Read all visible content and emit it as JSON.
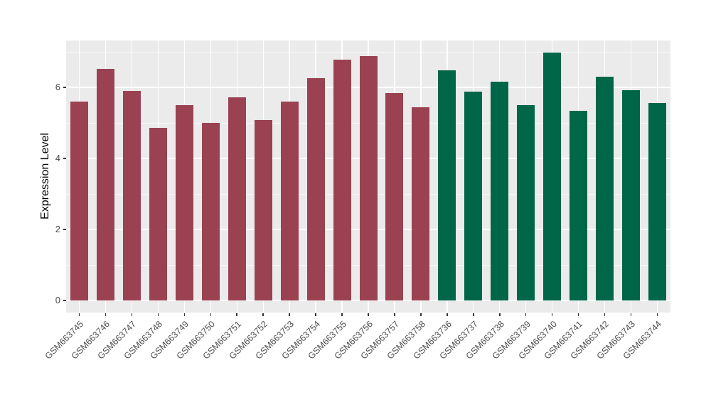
{
  "figure": {
    "background": "#FFFFFF",
    "panel_background": "#EBEBEB",
    "gridline_color": "#FFFFFF"
  },
  "chart_data": {
    "type": "bar",
    "title": "",
    "xlabel": "",
    "ylabel": "Expression Level",
    "ylim": [
      0,
      7.32
    ],
    "yticks": [
      0,
      2,
      4,
      6
    ],
    "yticks_minor": [
      1,
      3,
      5,
      7
    ],
    "grid": true,
    "legend_position": "none",
    "categories": [
      "GSM663745",
      "GSM663746",
      "GSM663747",
      "GSM663748",
      "GSM663749",
      "GSM663750",
      "GSM663751",
      "GSM663752",
      "GSM663753",
      "GSM663754",
      "GSM663755",
      "GSM663756",
      "GSM663757",
      "GSM663758",
      "GSM663736",
      "GSM663737",
      "GSM663738",
      "GSM663739",
      "GSM663740",
      "GSM663741",
      "GSM663742",
      "GSM663743",
      "GSM663744"
    ],
    "values": [
      5.6,
      6.52,
      5.9,
      4.86,
      5.5,
      5.0,
      5.72,
      5.08,
      5.6,
      6.26,
      6.78,
      6.88,
      5.85,
      5.44,
      6.48,
      5.88,
      6.16,
      5.51,
      6.98,
      5.35,
      6.3,
      5.92,
      5.56
    ],
    "groups": [
      "group1",
      "group1",
      "group1",
      "group1",
      "group1",
      "group1",
      "group1",
      "group1",
      "group1",
      "group1",
      "group1",
      "group1",
      "group1",
      "group1",
      "group2",
      "group2",
      "group2",
      "group2",
      "group2",
      "group2",
      "group2",
      "group2",
      "group2"
    ],
    "group_colors": {
      "group1": "#9A4252",
      "group2": "#006648"
    }
  }
}
